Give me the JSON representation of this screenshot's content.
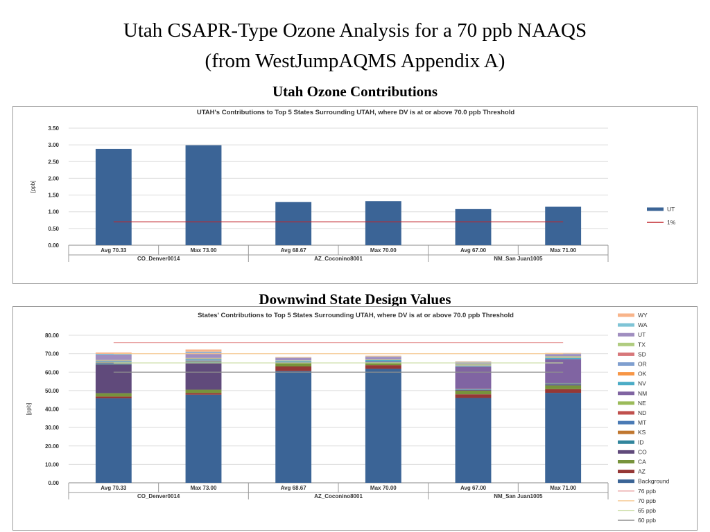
{
  "page": {
    "title_line1": "Utah CSAPR-Type Ozone Analysis for a 70 ppb NAAQS",
    "title_line2": "(from WestJumpAQMS Appendix A)",
    "heading_contributions": "Utah Ozone Contributions",
    "heading_design_values": "Downwind State Design Values"
  },
  "chart_data": [
    {
      "type": "bar",
      "title": "UTAH's Contributions  to Top 5 States Surrounding  UTAH, where DV is at or above 70.0 ppb Threshold",
      "ylabel": "[ppb]",
      "ylim": [
        0,
        3.5
      ],
      "yticks": [
        "0.00",
        "0.50",
        "1.00",
        "1.50",
        "2.00",
        "2.50",
        "3.00",
        "3.50"
      ],
      "grid": true,
      "legend_position": "right",
      "categories": [
        "Avg 70.33",
        "Max 73.00",
        "Avg 68.67",
        "Max 70.00",
        "Avg 67.00",
        "Max 71.00"
      ],
      "groups": [
        "CO_Denver0014",
        "AZ_Coconino8001",
        "NM_San Juan1005"
      ],
      "series": [
        {
          "name": "UT",
          "color": "#3b6496",
          "values": [
            2.88,
            2.99,
            1.29,
            1.32,
            1.08,
            1.15
          ]
        }
      ],
      "lines": [
        {
          "name": "1%",
          "color": "#c0272d",
          "value": 0.7
        }
      ]
    },
    {
      "type": "bar",
      "stacked": true,
      "title": "States' Contributions  to Top 5 States Surrounding  UTAH, where DV is at or above 70.0 ppb Threshold",
      "ylabel": "[ppb]",
      "ylim": [
        0,
        80
      ],
      "yticks": [
        "0.00",
        "10.00",
        "20.00",
        "30.00",
        "40.00",
        "50.00",
        "60.00",
        "70.00",
        "80.00"
      ],
      "grid": true,
      "legend_position": "right",
      "categories": [
        "Avg 70.33",
        "Max 73.00",
        "Avg 68.67",
        "Max 70.00",
        "Avg 67.00",
        "Max 71.00"
      ],
      "groups": [
        "CO_Denver0014",
        "AZ_Coconino8001",
        "NM_San Juan1005"
      ],
      "series": [
        {
          "name": "Background",
          "color": "#3b6496",
          "values": [
            45.8,
            47.8,
            60.6,
            61.8,
            46.0,
            48.8
          ]
        },
        {
          "name": "AZ",
          "color": "#953735",
          "values": [
            1.0,
            0.9,
            2.5,
            2.0,
            2.0,
            2.0
          ]
        },
        {
          "name": "CA",
          "color": "#77933c",
          "values": [
            1.8,
            1.8,
            1.7,
            1.5,
            2.0,
            2.0
          ]
        },
        {
          "name": "CO",
          "color": "#604a7b",
          "values": [
            15.5,
            14.5,
            0.0,
            0.0,
            0.4,
            0.5
          ]
        },
        {
          "name": "ID",
          "color": "#31859c",
          "values": [
            0.4,
            0.4,
            0.1,
            0.1,
            0.2,
            0.2
          ]
        },
        {
          "name": "KS",
          "color": "#c0772f",
          "values": [
            0.2,
            0.2,
            0.0,
            0.0,
            0.0,
            0.1
          ]
        },
        {
          "name": "MT",
          "color": "#4a7ab5",
          "values": [
            0.3,
            0.3,
            0.1,
            0.1,
            0.2,
            0.3
          ]
        },
        {
          "name": "ND",
          "color": "#c0504d",
          "values": [
            0.1,
            0.1,
            0.0,
            0.0,
            0.1,
            0.1
          ]
        },
        {
          "name": "NE",
          "color": "#9bbb59",
          "values": [
            0.2,
            0.2,
            0.0,
            0.0,
            0.1,
            0.1
          ]
        },
        {
          "name": "NM",
          "color": "#8064a2",
          "values": [
            0.2,
            0.2,
            0.4,
            0.4,
            12.0,
            13.0
          ]
        },
        {
          "name": "NV",
          "color": "#4bacc6",
          "values": [
            0.4,
            0.5,
            0.6,
            0.6,
            0.4,
            0.5
          ]
        },
        {
          "name": "OK",
          "color": "#f79646",
          "values": [
            0.1,
            0.1,
            0.1,
            0.1,
            0.1,
            0.1
          ]
        },
        {
          "name": "OR",
          "color": "#7f9fcf",
          "values": [
            0.2,
            0.3,
            0.1,
            0.1,
            0.1,
            0.2
          ]
        },
        {
          "name": "SD",
          "color": "#d7777a",
          "values": [
            0.1,
            0.1,
            0.0,
            0.0,
            0.1,
            0.1
          ]
        },
        {
          "name": "TX",
          "color": "#b0cc80",
          "values": [
            0.3,
            0.3,
            0.2,
            0.3,
            0.6,
            0.6
          ]
        },
        {
          "name": "UT",
          "color": "#a08ec0",
          "values": [
            2.9,
            3.0,
            1.3,
            1.3,
            1.1,
            1.2
          ]
        },
        {
          "name": "WA",
          "color": "#7fc4d6",
          "values": [
            0.4,
            0.4,
            0.2,
            0.2,
            0.2,
            0.2
          ]
        },
        {
          "name": "WY",
          "color": "#f8b48a",
          "values": [
            0.8,
            1.2,
            0.4,
            0.4,
            0.3,
            0.4
          ]
        }
      ],
      "lines": [
        {
          "name": "76 ppb",
          "color": "#e9a3a3",
          "value": 76
        },
        {
          "name": "70 ppb",
          "color": "#f5c88f",
          "value": 70
        },
        {
          "name": "65 ppb",
          "color": "#c8dca0",
          "value": 65
        },
        {
          "name": "60 ppb",
          "color": "#8f8f8f",
          "value": 60
        }
      ]
    }
  ]
}
